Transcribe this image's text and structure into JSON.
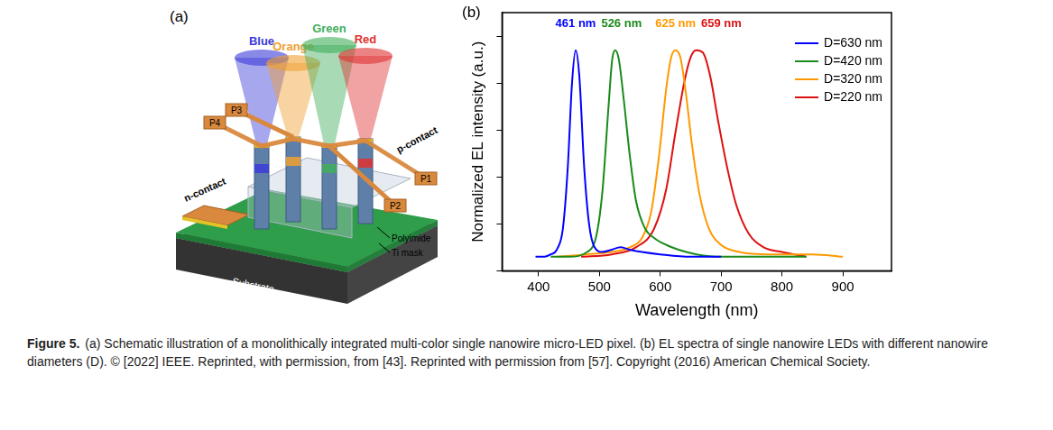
{
  "panel_a": {
    "letter": "(a)",
    "beams": [
      {
        "label": "Blue",
        "color": "#3b3bd9"
      },
      {
        "label": "Orange",
        "color": "#f0a030"
      },
      {
        "label": "Green",
        "color": "#3fae5a"
      },
      {
        "label": "Red",
        "color": "#e03030"
      }
    ],
    "pads": [
      "P1",
      "P2",
      "P3",
      "P4"
    ],
    "n_contact": "n-contact",
    "p_contact": "p-contact",
    "polyimide": "Polyimide",
    "ti_mask": "Ti mask",
    "substrate": "Substrate"
  },
  "panel_b": {
    "letter": "(b)"
  },
  "chart_data": {
    "type": "line",
    "x_label": "Wavelength (nm)",
    "y_label": "Normalized EL intensity (a.u.)",
    "xlim": [
      340,
      980
    ],
    "xticks": [
      400,
      500,
      600,
      700,
      800,
      900
    ],
    "ylim": [
      0,
      1.1
    ],
    "yticks": [
      0,
      0.2,
      0.4,
      0.6,
      0.8,
      1.0
    ],
    "tick_labels": "x",
    "grid": false,
    "legend": "upper right",
    "series": [
      {
        "name": "D=630 nm",
        "color": "#0000ff",
        "x": [
          395,
          410,
          420,
          430,
          440,
          448,
          455,
          461,
          467,
          475,
          483,
          492,
          505,
          520,
          535,
          550,
          570,
          600,
          650,
          700
        ],
        "values": [
          0.06,
          0.06,
          0.07,
          0.09,
          0.18,
          0.44,
          0.8,
          0.94,
          0.83,
          0.44,
          0.2,
          0.1,
          0.08,
          0.09,
          0.1,
          0.09,
          0.08,
          0.07,
          0.06,
          0.06
        ]
      },
      {
        "name": "D=420 nm",
        "color": "#1a8a1a",
        "x": [
          420,
          450,
          480,
          495,
          505,
          515,
          521,
          526,
          532,
          540,
          550,
          560,
          575,
          590,
          610,
          630,
          660,
          700,
          760,
          840
        ],
        "values": [
          0.06,
          0.06,
          0.08,
          0.15,
          0.34,
          0.7,
          0.9,
          0.94,
          0.9,
          0.73,
          0.49,
          0.3,
          0.18,
          0.14,
          0.11,
          0.09,
          0.07,
          0.06,
          0.06,
          0.06
        ]
      },
      {
        "name": "D=320 nm",
        "color": "#ff9900",
        "x": [
          430,
          480,
          520,
          550,
          570,
          585,
          598,
          610,
          618,
          625,
          633,
          642,
          652,
          665,
          680,
          700,
          730,
          780,
          850,
          900
        ],
        "values": [
          0.06,
          0.07,
          0.08,
          0.1,
          0.14,
          0.25,
          0.49,
          0.78,
          0.91,
          0.94,
          0.91,
          0.76,
          0.54,
          0.32,
          0.18,
          0.11,
          0.08,
          0.07,
          0.07,
          0.06
        ]
      },
      {
        "name": "D=220 nm",
        "color": "#dd1111",
        "x": [
          470,
          520,
          560,
          590,
          610,
          625,
          640,
          650,
          659,
          670,
          682,
          695,
          710,
          725,
          745,
          770,
          800,
          840
        ],
        "values": [
          0.06,
          0.07,
          0.1,
          0.18,
          0.35,
          0.59,
          0.81,
          0.91,
          0.94,
          0.93,
          0.83,
          0.64,
          0.44,
          0.28,
          0.16,
          0.1,
          0.08,
          0.06
        ]
      }
    ],
    "annotations": [
      {
        "text": "461 nm",
        "x": 461,
        "color": "#0000ff"
      },
      {
        "text": "526 nm",
        "x": 526,
        "color": "#1a8a1a"
      },
      {
        "text": "625 nm",
        "x": 625,
        "color": "#ff9900"
      },
      {
        "text": "659 nm",
        "x": 659,
        "color": "#dd1111"
      }
    ]
  },
  "caption": {
    "label": "Figure 5.",
    "text": "(a) Schematic illustration of a monolithically integrated multi-color single nanowire micro-LED pixel. (b) EL spectra of single nanowire LEDs with different nanowire diameters (D). © [2022] IEEE. Reprinted, with permission, from [43]. Reprinted with permission from [57]. Copyright (2016) American Chemical Society."
  }
}
